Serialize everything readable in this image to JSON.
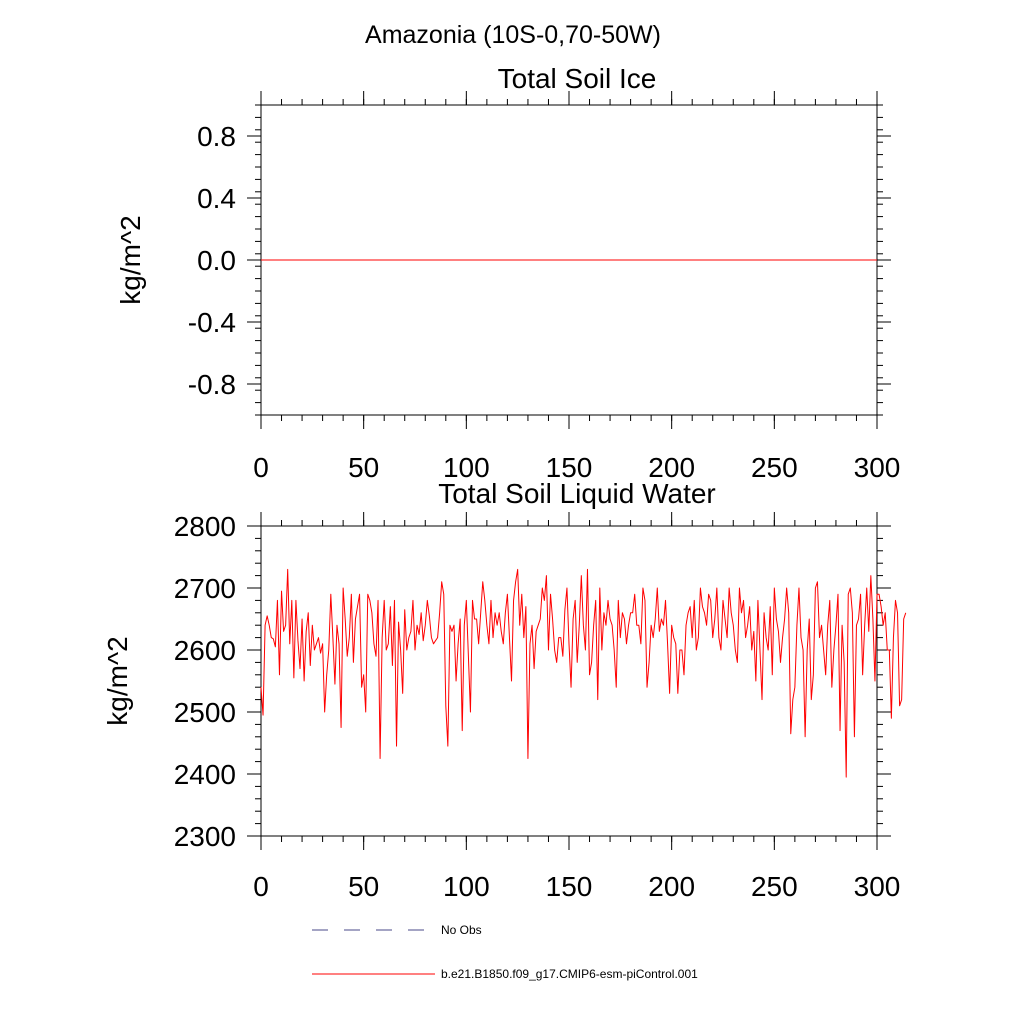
{
  "figure": {
    "suptitle": "Amazonia (10S-0,70-50W)",
    "series_color": "#ff0000",
    "obs_color": "#4a4a8a"
  },
  "legend": {
    "entries": [
      {
        "label": "No Obs",
        "style": "dashed",
        "color": "#4a4a8a"
      },
      {
        "label": "b.e21.B1850.f09_g17.CMIP6-esm-piControl.001",
        "style": "solid",
        "color": "#ff0000"
      }
    ]
  },
  "chart_data": [
    {
      "type": "line",
      "title": "Total Soil Ice",
      "xlabel": "",
      "ylabel": "kg/m^2",
      "xlim": [
        0,
        300
      ],
      "ylim": [
        -1.0,
        1.0
      ],
      "xticks": [
        0,
        50,
        100,
        150,
        200,
        250,
        300
      ],
      "xtick_labels": [
        "0",
        "50",
        "100",
        "150",
        "200",
        "250",
        "300"
      ],
      "yticks": [
        0.8,
        0.4,
        0.0,
        -0.4,
        -0.8
      ],
      "ytick_labels": [
        "0.8",
        "0.4",
        "0.0",
        "-0.4",
        "-0.8"
      ],
      "series": [
        {
          "name": "b.e21.B1850.f09_g17.CMIP6-esm-piControl.001",
          "x": [
            0,
            300
          ],
          "values": [
            0.0,
            0.0
          ]
        }
      ]
    },
    {
      "type": "line",
      "title": "Total Soil Liquid Water",
      "xlabel": "",
      "ylabel": "kg/m^2",
      "xlim": [
        0,
        300
      ],
      "ylim": [
        2300,
        2800
      ],
      "xticks": [
        0,
        50,
        100,
        150,
        200,
        250,
        300
      ],
      "xtick_labels": [
        "0",
        "50",
        "100",
        "150",
        "200",
        "250",
        "300"
      ],
      "yticks": [
        2800,
        2700,
        2600,
        2500,
        2400,
        2300
      ],
      "ytick_labels": [
        "2800",
        "2700",
        "2600",
        "2500",
        "2400",
        "2300"
      ],
      "series": [
        {
          "name": "b.e21.B1850.f09_g17.CMIP6-esm-piControl.001",
          "x_start": 0,
          "x_step": 1,
          "values": [
            2540,
            2495,
            2640,
            2655,
            2640,
            2620,
            2618,
            2605,
            2680,
            2560,
            2695,
            2630,
            2640,
            2730,
            2610,
            2680,
            2555,
            2680,
            2615,
            2570,
            2650,
            2550,
            2630,
            2660,
            2575,
            2640,
            2600,
            2610,
            2620,
            2595,
            2610,
            2500,
            2560,
            2600,
            2690,
            2620,
            2545,
            2640,
            2610,
            2475,
            2700,
            2650,
            2590,
            2620,
            2690,
            2580,
            2650,
            2670,
            2690,
            2540,
            2560,
            2500,
            2690,
            2680,
            2660,
            2610,
            2590,
            2680,
            2425,
            2620,
            2680,
            2600,
            2610,
            2670,
            2575,
            2680,
            2445,
            2645,
            2600,
            2530,
            2665,
            2600,
            2620,
            2630,
            2680,
            2600,
            2640,
            2625,
            2660,
            2615,
            2640,
            2680,
            2655,
            2620,
            2610,
            2615,
            2620,
            2660,
            2710,
            2690,
            2510,
            2445,
            2640,
            2630,
            2640,
            2550,
            2610,
            2650,
            2470,
            2640,
            2680,
            2590,
            2500,
            2680,
            2650,
            2650,
            2610,
            2660,
            2710,
            2680,
            2640,
            2610,
            2680,
            2620,
            2660,
            2640,
            2660,
            2630,
            2610,
            2660,
            2690,
            2620,
            2550,
            2680,
            2710,
            2730,
            2640,
            2690,
            2620,
            2670,
            2425,
            2610,
            2640,
            2570,
            2630,
            2640,
            2650,
            2700,
            2680,
            2720,
            2600,
            2690,
            2650,
            2600,
            2580,
            2620,
            2620,
            2590,
            2665,
            2700,
            2610,
            2540,
            2650,
            2680,
            2580,
            2640,
            2720,
            2640,
            2600,
            2730,
            2560,
            2580,
            2640,
            2680,
            2520,
            2700,
            2600,
            2660,
            2640,
            2680,
            2650,
            2640,
            2600,
            2540,
            2680,
            2620,
            2660,
            2650,
            2610,
            2640,
            2660,
            2660,
            2690,
            2640,
            2640,
            2610,
            2700,
            2680,
            2540,
            2580,
            2640,
            2620,
            2650,
            2700,
            2630,
            2650,
            2640,
            2680,
            2610,
            2530,
            2640,
            2620,
            2610,
            2530,
            2600,
            2600,
            2560,
            2640,
            2660,
            2670,
            2620,
            2680,
            2600,
            2620,
            2700,
            2670,
            2660,
            2640,
            2690,
            2680,
            2620,
            2650,
            2700,
            2620,
            2600,
            2680,
            2650,
            2620,
            2700,
            2660,
            2640,
            2600,
            2580,
            2700,
            2660,
            2680,
            2620,
            2640,
            2670,
            2600,
            2630,
            2550,
            2680,
            2600,
            2520,
            2660,
            2620,
            2600,
            2670,
            2560,
            2700,
            2650,
            2630,
            2580,
            2620,
            2650,
            2700,
            2660,
            2465,
            2520,
            2540,
            2640,
            2700,
            2620,
            2600,
            2460,
            2600,
            2650,
            2520,
            2560,
            2700,
            2710,
            2620,
            2640,
            2600,
            2560,
            2640,
            2680,
            2540,
            2600,
            2640,
            2690,
            2470,
            2640,
            2580,
            2395,
            2690,
            2700,
            2660,
            2460,
            2640,
            2650,
            2690,
            2560,
            2640,
            2700,
            2630,
            2720,
            2650,
            2550,
            2690,
            2690,
            2670,
            2640,
            2660,
            2600,
            2600,
            2490,
            2620,
            2680,
            2660,
            2510,
            2520,
            2650,
            2660
          ]
        }
      ]
    }
  ]
}
